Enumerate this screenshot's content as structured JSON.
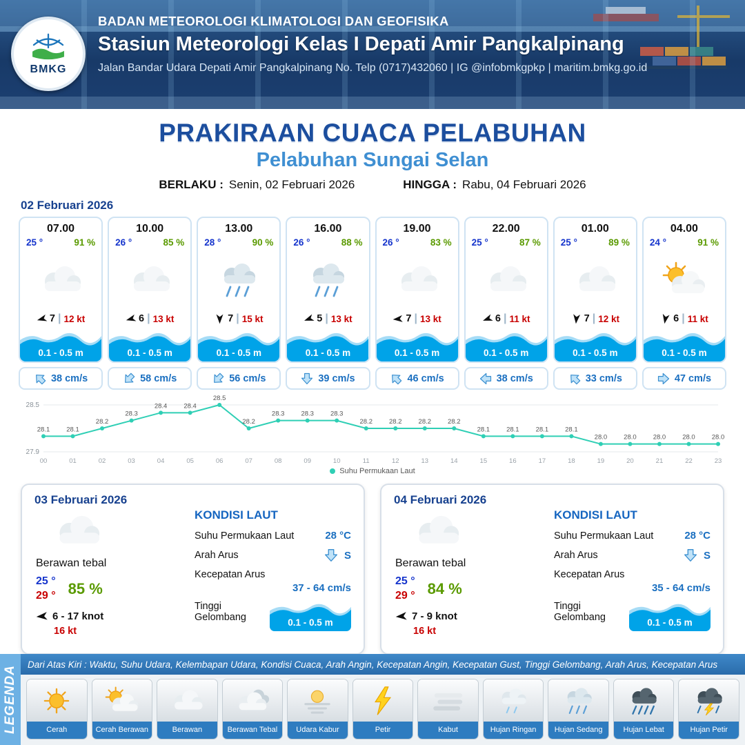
{
  "header": {
    "logo_text": "BMKG",
    "agency": "BADAN METEOROLOGI KLIMATOLOGI DAN GEOFISIKA",
    "station": "Stasiun Meteorologi Kelas I Depati Amir Pangkalpinang",
    "contact": "Jalan Bandar Udara Depati Amir Pangkalpinang No. Telp (0717)432060 | IG @infobmkgpkp | maritim.bmkg.go.id"
  },
  "title": {
    "main": "PRAKIRAAN CUACA PELABUHAN",
    "sub": "Pelabuhan Sungai Selan",
    "valid_from_label": "BERLAKU :",
    "valid_from": "Senin, 02 Februari 2026",
    "valid_to_label": "HINGGA :",
    "valid_to": "Rabu, 04 Februari 2026"
  },
  "day_label": "02 Februari 2026",
  "ui": {
    "separator": "|"
  },
  "hourly": [
    {
      "time": "07.00",
      "temp": "25 °",
      "rh": "91 %",
      "icon": "berawan",
      "wind_dir": 255,
      "wind_speed": "7",
      "gust": "12 kt",
      "wave": "0.1 - 0.5 m",
      "current_dir": 315,
      "current": "38 cm/s"
    },
    {
      "time": "10.00",
      "temp": "26 °",
      "rh": "85 %",
      "icon": "berawan",
      "wind_dir": 255,
      "wind_speed": "6",
      "gust": "13 kt",
      "wave": "0.1 - 0.5 m",
      "current_dir": 225,
      "current": "58 cm/s"
    },
    {
      "time": "13.00",
      "temp": "28 °",
      "rh": "90 %",
      "icon": "hujan-sedang",
      "wind_dir": 180,
      "wind_speed": "7",
      "gust": "15 kt",
      "wave": "0.1 - 0.5 m",
      "current_dir": 225,
      "current": "56 cm/s"
    },
    {
      "time": "16.00",
      "temp": "26 °",
      "rh": "88 %",
      "icon": "hujan-sedang",
      "wind_dir": 250,
      "wind_speed": "5",
      "gust": "13 kt",
      "wave": "0.1 - 0.5 m",
      "current_dir": 180,
      "current": "39 cm/s"
    },
    {
      "time": "19.00",
      "temp": "26 °",
      "rh": "83 %",
      "icon": "berawan",
      "wind_dir": 265,
      "wind_speed": "7",
      "gust": "13 kt",
      "wave": "0.1 - 0.5 m",
      "current_dir": 315,
      "current": "46 cm/s"
    },
    {
      "time": "22.00",
      "temp": "25 °",
      "rh": "87 %",
      "icon": "berawan",
      "wind_dir": 250,
      "wind_speed": "6",
      "gust": "11 kt",
      "wave": "0.1 - 0.5 m",
      "current_dir": 270,
      "current": "38 cm/s"
    },
    {
      "time": "01.00",
      "temp": "25 °",
      "rh": "89 %",
      "icon": "berawan",
      "wind_dir": 185,
      "wind_speed": "7",
      "gust": "12 kt",
      "wave": "0.1 - 0.5 m",
      "current_dir": 315,
      "current": "33 cm/s"
    },
    {
      "time": "04.00",
      "temp": "24 °",
      "rh": "91 %",
      "icon": "cerah-berawan",
      "wind_dir": 190,
      "wind_speed": "6",
      "gust": "11 kt",
      "wave": "0.1 - 0.5 m",
      "current_dir": 90,
      "current": "47 cm/s"
    }
  ],
  "chart_data": {
    "type": "line",
    "title": "Suhu Permukaan Laut",
    "x": [
      "00",
      "01",
      "02",
      "03",
      "04",
      "05",
      "06",
      "07",
      "08",
      "09",
      "10",
      "11",
      "12",
      "13",
      "14",
      "15",
      "16",
      "17",
      "18",
      "19",
      "20",
      "21",
      "22",
      "23"
    ],
    "series": [
      {
        "name": "Suhu Permukaan Laut",
        "values": [
          28.1,
          28.1,
          28.2,
          28.3,
          28.4,
          28.4,
          28.5,
          28.2,
          28.3,
          28.3,
          28.3,
          28.2,
          28.2,
          28.2,
          28.2,
          28.1,
          28.1,
          28.1,
          28.1,
          28.0,
          28.0,
          28.0,
          28.0,
          28.0
        ]
      }
    ],
    "ylim": [
      27.9,
      28.5
    ],
    "yticks": [
      "28.5",
      "27.9"
    ],
    "line_color": "#2fcfb5",
    "grid": true,
    "legend_position": "bottom"
  },
  "daily": [
    {
      "date": "03 Februari 2026",
      "icon": "berawan-tebal",
      "condition": "Berawan tebal",
      "temp_min": "25 °",
      "temp_max": "29 °",
      "rh": "85 %",
      "wind_dir": 265,
      "wind_range": "6 - 17 knot",
      "gust": "16 kt",
      "sea_title": "KONDISI LAUT",
      "sst_label": "Suhu Permukaan Laut",
      "sst_value": "28 °C",
      "current_dir_label": "Arah Arus",
      "current_dir_value": "S",
      "current_dir_deg": 180,
      "current_speed_label": "Kecepatan Arus",
      "current_speed_value": "37  - 64 cm/s",
      "wave_label": "Tinggi Gelombang",
      "wave_value": "0.1 - 0.5 m"
    },
    {
      "date": "04 Februari 2026",
      "icon": "berawan-tebal",
      "condition": "Berawan tebal",
      "temp_min": "25 °",
      "temp_max": "29 °",
      "rh": "84 %",
      "wind_dir": 265,
      "wind_range": "7 - 9 knot",
      "gust": "16 kt",
      "sea_title": "KONDISI LAUT",
      "sst_label": "Suhu Permukaan Laut",
      "sst_value": "28 °C",
      "current_dir_label": "Arah Arus",
      "current_dir_value": "S",
      "current_dir_deg": 180,
      "current_speed_label": "Kecepatan Arus",
      "current_speed_value": "35  - 64 cm/s",
      "wave_label": "Tinggi Gelombang",
      "wave_value": "0.1 - 0.5 m"
    }
  ],
  "legend": {
    "vertical_label": "LEGENDA",
    "description": "Dari Atas Kiri : Waktu, Suhu Udara, Kelembapan Udara, Kondisi Cuaca, Arah Angin, Kecepatan Angin, Kecepatan Gust, Tinggi Gelombang, Arah Arus, Kecepatan Arus",
    "items": [
      {
        "label": "Cerah",
        "icon": "cerah"
      },
      {
        "label": "Cerah Berawan",
        "icon": "cerah-berawan"
      },
      {
        "label": "Berawan",
        "icon": "berawan"
      },
      {
        "label": "Berawan Tebal",
        "icon": "berawan-tebal"
      },
      {
        "label": "Udara Kabur",
        "icon": "udara-kabur"
      },
      {
        "label": "Petir",
        "icon": "petir"
      },
      {
        "label": "Kabut",
        "icon": "kabut"
      },
      {
        "label": "Hujan Ringan",
        "icon": "hujan-ringan"
      },
      {
        "label": "Hujan Sedang",
        "icon": "hujan-sedang"
      },
      {
        "label": "Hujan Lebat",
        "icon": "hujan-lebat"
      },
      {
        "label": "Hujan Petir",
        "icon": "hujan-petir"
      }
    ]
  }
}
